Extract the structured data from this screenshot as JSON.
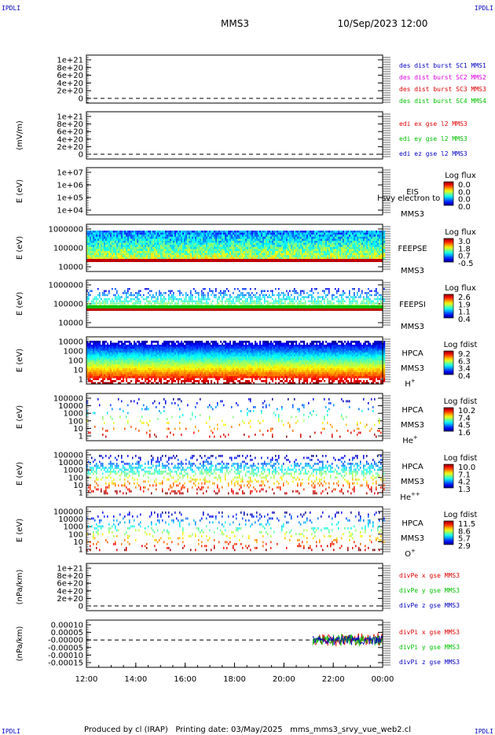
{
  "header": {
    "left_tag": "IPDLI",
    "right_tag": "IPDLI",
    "spacecraft": "MMS3",
    "datetime": "10/Sep/2023 12:00"
  },
  "footer": {
    "text": "Produced by cl (IRAP)   Printing date: 03/May/2025   mms_mms3_srvy_vue_web2.cl",
    "left_tag": "IPDLI",
    "right_tag": "IPDLI"
  },
  "colors": {
    "red": "#e00000",
    "magenta": "#e000e0",
    "green": "#00c000",
    "blue": "#0000c0",
    "black": "#000000"
  },
  "chart_data": {
    "type": "multi-panel time series",
    "x_ticks": [
      "12:00",
      "14:00",
      "16:00",
      "18:00",
      "20:00",
      "22:00",
      "00:00"
    ],
    "panels": [
      {
        "id": "des_dist",
        "type": "line",
        "ylabel": "",
        "ticks": [
          "1e+21",
          "8e+20",
          "6e+20",
          "4e+20",
          "2e+20",
          "0"
        ],
        "zero_line": true,
        "legend": [
          {
            "text": "des dist burst SC1 MMS1",
            "color": "#0000c0"
          },
          {
            "text": "des dist burst SC2 MMS2",
            "color": "#e000e0"
          },
          {
            "text": "des dist burst SC3 MMS3",
            "color": "#e00000"
          },
          {
            "text": "des dist burst SC4 MMS4",
            "color": "#00c000"
          }
        ]
      },
      {
        "id": "edi_e",
        "type": "line",
        "ylabel": "(mV/m)",
        "ticks": [
          "1e+21",
          "8e+20",
          "6e+20",
          "4e+20",
          "2e+20",
          "0"
        ],
        "zero_line": true,
        "legend": [
          {
            "text": "edi ex gse l2 MMS3",
            "color": "#e00000"
          },
          {
            "text": "edi ey gse l2 MMS3",
            "color": "#00c000"
          },
          {
            "text": "edi ez gse l2 MMS3",
            "color": "#0000c0"
          }
        ]
      },
      {
        "id": "eis",
        "type": "heatmap",
        "ylabel": "E (eV)",
        "ticks": [
          "1e+07",
          "1e+06",
          "1e+05",
          "1e+04"
        ],
        "labels": [
          "EIS",
          "MMS3"
        ],
        "overlay_text": "l svy electron to",
        "cbar_title": "Log flux",
        "cbar_ticks": [
          "0.0",
          "0.0",
          "0.0",
          "0.0"
        ]
      },
      {
        "id": "feepse",
        "type": "heatmap",
        "ylabel": "E (eV)",
        "ticks": [
          "1000000",
          "100000",
          "10000"
        ],
        "labels": [
          "FEEPSE",
          "MMS3"
        ],
        "cbar_title": "Log flux",
        "cbar_ticks": [
          "3.0",
          "1.8",
          "0.7",
          "-0.5"
        ]
      },
      {
        "id": "feepsi",
        "type": "heatmap",
        "ylabel": "E (eV)",
        "ticks": [
          "1000000",
          "100000",
          "10000"
        ],
        "labels": [
          "FEEPSI",
          "MMS3"
        ],
        "cbar_title": "Log flux",
        "cbar_ticks": [
          "2.6",
          "1.9",
          "1.1",
          "0.4"
        ]
      },
      {
        "id": "hpca_h",
        "type": "heatmap",
        "ylabel": "E (eV)",
        "ticks": [
          "10000",
          "1000",
          "100",
          "10",
          "1"
        ],
        "labels": [
          "HPCA",
          "MMS3"
        ],
        "species": "H",
        "species_sup": "+",
        "cbar_title": "Log fdist",
        "cbar_ticks": [
          "9.2",
          "6.3",
          "3.4",
          "0.4"
        ]
      },
      {
        "id": "hpca_he",
        "type": "heatmap",
        "ylabel": "E (eV)",
        "ticks": [
          "100000",
          "10000",
          "1000",
          "100",
          "10",
          "1"
        ],
        "labels": [
          "HPCA",
          "MMS3"
        ],
        "species": "He",
        "species_sup": "+",
        "cbar_title": "Log fdist",
        "cbar_ticks": [
          "10.2",
          "7.4",
          "4.5",
          "1.6"
        ]
      },
      {
        "id": "hpca_he2",
        "type": "heatmap",
        "ylabel": "E (eV)",
        "ticks": [
          "100000",
          "10000",
          "1000",
          "100",
          "10",
          "1"
        ],
        "labels": [
          "HPCA",
          "MMS3"
        ],
        "species": "He",
        "species_sup": "++",
        "cbar_title": "Log fdist",
        "cbar_ticks": [
          "10.0",
          "7.1",
          "4.2",
          "1.3"
        ]
      },
      {
        "id": "hpca_o",
        "type": "heatmap",
        "ylabel": "E (eV)",
        "ticks": [
          "100000",
          "10000",
          "1000",
          "100",
          "10",
          "1"
        ],
        "labels": [
          "HPCA",
          "MMS3"
        ],
        "species": "O",
        "species_sup": "+",
        "cbar_title": "Log fdist",
        "cbar_ticks": [
          "11.5",
          "8.6",
          "5.7",
          "2.9"
        ]
      },
      {
        "id": "divpe",
        "type": "line",
        "ylabel": "(nPa/km)",
        "ticks": [
          "1e+21",
          "8e+20",
          "6e+20",
          "4e+20",
          "2e+20",
          "0"
        ],
        "zero_line": true,
        "legend": [
          {
            "text": "divPe x gse MMS3",
            "color": "#e00000"
          },
          {
            "text": "divPe y gse MMS3",
            "color": "#00c000"
          },
          {
            "text": "divPe z gse MMS3",
            "color": "#0000c0"
          }
        ]
      },
      {
        "id": "divpi",
        "type": "line",
        "ylabel": "(nPa/km)",
        "ticks": [
          "0.00010",
          "0.00005",
          "-0.00000",
          "-0.00005",
          "-0.00010",
          "-0.00015"
        ],
        "zero_line": true,
        "data_start": "21:10",
        "data_end": "00:00",
        "legend": [
          {
            "text": "divPi x gse MMS3",
            "color": "#e00000"
          },
          {
            "text": "divPi y gse MMS3",
            "color": "#00c000"
          },
          {
            "text": "divPi z gse MMS3",
            "color": "#0000c0"
          }
        ]
      }
    ]
  }
}
